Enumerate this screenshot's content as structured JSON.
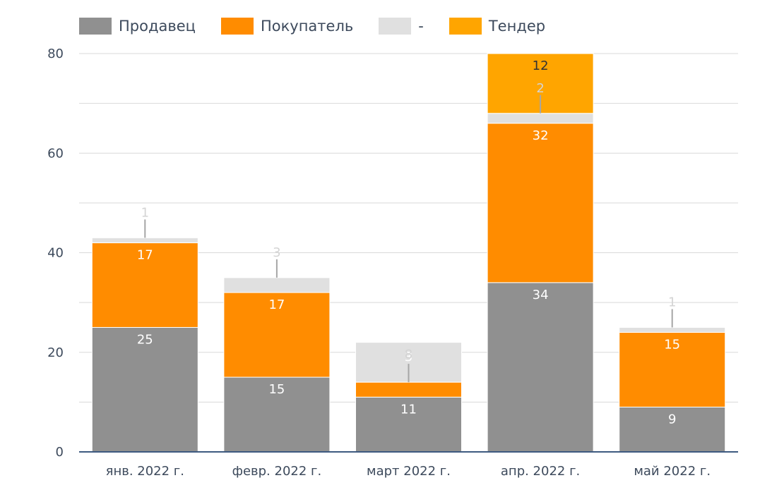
{
  "legend": [
    {
      "name": "Продавец",
      "color": "#909090"
    },
    {
      "name": "Покупатель",
      "color": "#FF8C00"
    },
    {
      "name": "-",
      "color": "#E0E0E0"
    },
    {
      "name": "Тендер",
      "color": "#FFA500"
    }
  ],
  "chart_data": {
    "type": "bar",
    "stacked": true,
    "categories": [
      "янв. 2022 г.",
      "февр. 2022 г.",
      "март 2022 г.",
      "апр. 2022 г.",
      "май 2022 г."
    ],
    "series": [
      {
        "name": "Продавец",
        "color": "#909090",
        "label_color": "#ffffff",
        "values": [
          25,
          15,
          11,
          34,
          9
        ]
      },
      {
        "name": "Покупатель",
        "color": "#FF8C00",
        "label_color": "#ffffff",
        "values": [
          17,
          17,
          3,
          32,
          15
        ]
      },
      {
        "name": "-",
        "color": "#E0E0E0",
        "label_color": "#d4d4d4",
        "values": [
          1,
          3,
          8,
          2,
          1
        ]
      },
      {
        "name": "Тендер",
        "color": "#FFA500",
        "label_color": "#333333",
        "values": [
          0,
          0,
          0,
          12,
          0
        ]
      }
    ],
    "ylim": [
      0,
      80
    ],
    "yticks": [
      0,
      20,
      40,
      60,
      80
    ],
    "grid": true,
    "legend_position": "top-left"
  }
}
